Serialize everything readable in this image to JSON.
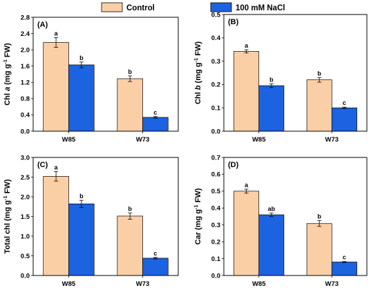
{
  "colors": {
    "control": "#fbcfa6",
    "nacl": "#1b63e0",
    "axis": "#000000"
  },
  "legend": [
    {
      "label": "Control",
      "color_key": "control"
    },
    {
      "label": "100 mM NaCl",
      "color_key": "nacl"
    }
  ],
  "chart_data": [
    {
      "type": "bar",
      "panel": "(A)",
      "ylabel_parts": {
        "prefix": "Chl ",
        "italic": "a",
        "middle": " (mg g",
        "sup": "-1",
        "suffix": " FW)"
      },
      "categories": [
        "W85",
        "W73"
      ],
      "series": [
        {
          "name": "Control",
          "values": [
            2.18,
            1.29
          ],
          "errors": [
            0.12,
            0.07
          ],
          "letters": [
            "a",
            "b"
          ]
        },
        {
          "name": "100 mM NaCl",
          "values": [
            1.63,
            0.34
          ],
          "errors": [
            0.07,
            0.02
          ],
          "letters": [
            "b",
            "c"
          ]
        }
      ],
      "ylim": [
        0,
        2.8
      ],
      "yticks": [
        "0.0",
        "0.4",
        "0.8",
        "1.2",
        "1.6",
        "2.0",
        "2.4",
        "2.8"
      ]
    },
    {
      "type": "bar",
      "panel": "(B)",
      "ylabel_parts": {
        "prefix": "Chl ",
        "italic": "b",
        "middle": " (mg g",
        "sup": "-1",
        "suffix": " FW)"
      },
      "categories": [
        "W85",
        "W73"
      ],
      "series": [
        {
          "name": "Control",
          "values": [
            0.342,
            0.22
          ],
          "errors": [
            0.007,
            0.01
          ],
          "letters": [
            "a",
            "b"
          ]
        },
        {
          "name": "100 mM NaCl",
          "values": [
            0.195,
            0.1
          ],
          "errors": [
            0.008,
            0.003
          ],
          "letters": [
            "b",
            "c"
          ]
        }
      ],
      "ylim": [
        0,
        0.5
      ],
      "yticks": [
        "0.0",
        "0.1",
        "0.2",
        "0.3",
        "0.4",
        "0.5"
      ]
    },
    {
      "type": "bar",
      "panel": "(C)",
      "ylabel_parts": {
        "prefix": "Total chl (mg g",
        "italic": "",
        "middle": "",
        "sup": "-1",
        "suffix": " FW)"
      },
      "categories": [
        "W85",
        "W73"
      ],
      "series": [
        {
          "name": "Control",
          "values": [
            2.52,
            1.51
          ],
          "errors": [
            0.12,
            0.08
          ],
          "letters": [
            "a",
            "b"
          ]
        },
        {
          "name": "100 mM NaCl",
          "values": [
            1.82,
            0.44
          ],
          "errors": [
            0.09,
            0.02
          ],
          "letters": [
            "b",
            "c"
          ]
        }
      ],
      "ylim": [
        0,
        3.0
      ],
      "yticks": [
        "0.0",
        "0.5",
        "1.0",
        "1.5",
        "2.0",
        "2.5",
        "3.0"
      ]
    },
    {
      "type": "bar",
      "panel": "(D)",
      "ylabel_parts": {
        "prefix": "Car (mg g",
        "italic": "",
        "middle": "",
        "sup": "-1",
        "suffix": " FW)"
      },
      "categories": [
        "W85",
        "W73"
      ],
      "series": [
        {
          "name": "Control",
          "values": [
            0.5,
            0.308
          ],
          "errors": [
            0.012,
            0.017
          ],
          "letters": [
            "a",
            "b"
          ]
        },
        {
          "name": "100 mM NaCl",
          "values": [
            0.36,
            0.08
          ],
          "errors": [
            0.01,
            0.003
          ],
          "letters": [
            "ab",
            "c"
          ]
        }
      ],
      "ylim": [
        0,
        0.7
      ],
      "yticks": [
        "0.0",
        "0.1",
        "0.2",
        "0.3",
        "0.4",
        "0.5",
        "0.6",
        "0.7"
      ]
    }
  ]
}
